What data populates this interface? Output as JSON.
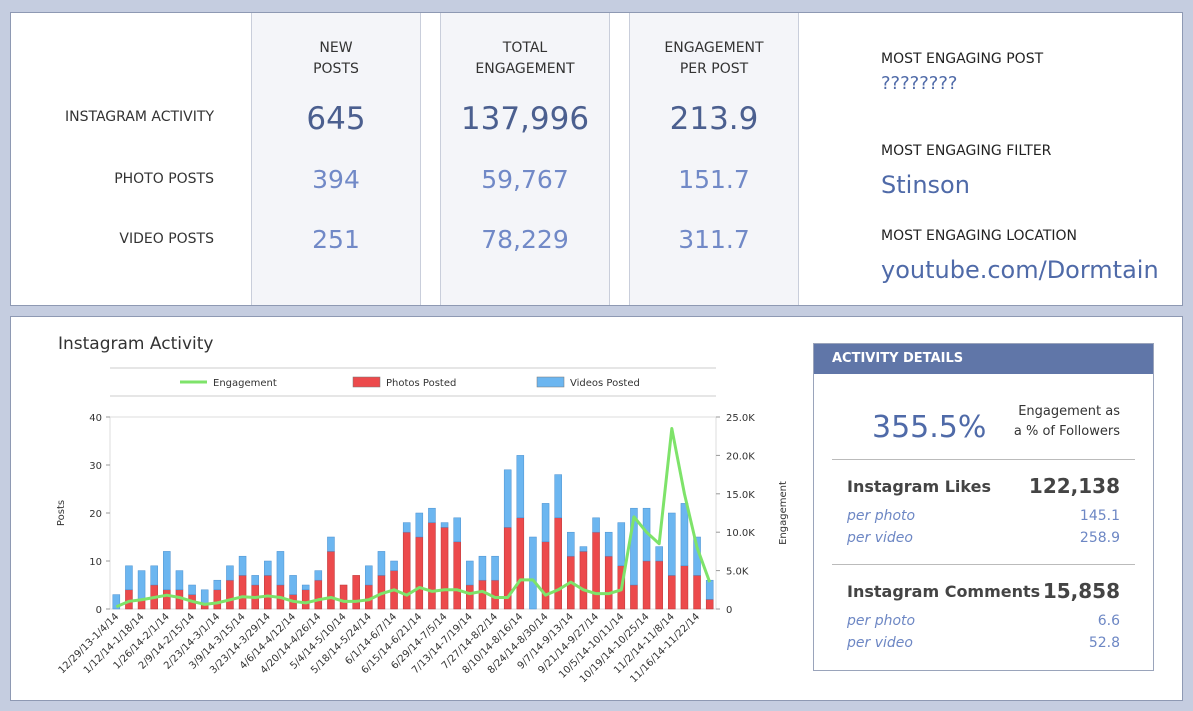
{
  "summary": {
    "headers": [
      [
        "NEW",
        "POSTS"
      ],
      [
        "TOTAL",
        "ENGAGEMENT"
      ],
      [
        "ENGAGEMENT",
        "PER POST"
      ]
    ],
    "rows": [
      {
        "label": "INSTAGRAM ACTIVITY",
        "values": [
          "645",
          "137,996",
          "213.9"
        ]
      },
      {
        "label": "PHOTO POSTS",
        "values": [
          "394",
          "59,767",
          "151.7"
        ]
      },
      {
        "label": "VIDEO POSTS",
        "values": [
          "251",
          "78,229",
          "311.7"
        ]
      }
    ],
    "highlights": [
      {
        "label": "MOST ENGAGING POST",
        "value": "????????"
      },
      {
        "label": "MOST ENGAGING FILTER",
        "value": "Stinson"
      },
      {
        "label": "MOST ENGAGING LOCATION",
        "value": "youtube.com/Dormtain"
      }
    ]
  },
  "details": {
    "title": "ACTIVITY DETAILS",
    "rate": "355.5%",
    "rate_label": [
      "Engagement as",
      "a % of Followers"
    ],
    "sections": [
      {
        "title": "Instagram Likes",
        "total": "122,138",
        "rows": [
          {
            "label": "per photo",
            "value": "145.1"
          },
          {
            "label": "per video",
            "value": "258.9"
          }
        ]
      },
      {
        "title": "Instagram Comments",
        "total": "15,858",
        "rows": [
          {
            "label": "per photo",
            "value": "6.6"
          },
          {
            "label": "per video",
            "value": "52.8"
          }
        ]
      }
    ]
  },
  "chart_data": {
    "type": "bar",
    "title": "Instagram Activity",
    "y_label": "Posts",
    "y2_label": "Engagement",
    "stacked": true,
    "categories": [
      "12/29/13-1/4/14",
      null,
      "1/12/14-1/18/14",
      null,
      "1/26/14-2/1/14",
      null,
      "2/9/14-2/15/14",
      null,
      "2/23/14-3/1/14",
      null,
      "3/9/14-3/15/14",
      null,
      "3/23/14-3/29/14",
      null,
      "4/6/14-4/12/14",
      null,
      "4/20/14-4/26/14",
      null,
      "5/4/14-5/10/14",
      null,
      "5/18/14-5/24/14",
      null,
      "6/1/14-6/7/14",
      null,
      "6/15/14-6/21/14",
      null,
      "6/29/14-7/5/14",
      null,
      "7/13/14-7/19/14",
      null,
      "7/27/14-8/2/14",
      null,
      "8/10/14-8/16/14",
      null,
      "8/24/14-8/30/14",
      null,
      "9/7/14-9/13/14",
      null,
      "9/21/14-9/27/14",
      null,
      "10/5/14-10/11/14",
      null,
      "10/19/14-10/25/14",
      null,
      "11/2/14-11/8/14",
      null,
      "11/16/14-11/22/14",
      null
    ],
    "series": [
      {
        "name": "Engagement",
        "type": "line",
        "axis": "y2",
        "color": "#7ee36a",
        "values": [
          300,
          1000,
          1200,
          1500,
          1800,
          1500,
          1000,
          600,
          800,
          1200,
          1600,
          1500,
          1700,
          1500,
          1000,
          800,
          1200,
          1500,
          1000,
          1000,
          1200,
          2000,
          2500,
          1800,
          2800,
          2300,
          2500,
          2500,
          2000,
          2300,
          1500,
          1500,
          3800,
          3800,
          1800,
          2500,
          3500,
          2500,
          2000,
          2000,
          2500,
          12000,
          10000,
          8500,
          23500,
          15000,
          8000,
          3500
        ]
      },
      {
        "name": "Photos Posted",
        "type": "bar",
        "color": "#ec4a4c",
        "values": [
          0,
          4,
          2,
          5,
          4,
          4,
          3,
          1,
          4,
          6,
          7,
          5,
          7,
          5,
          3,
          4,
          6,
          12,
          5,
          7,
          5,
          7,
          8,
          16,
          15,
          18,
          17,
          14,
          5,
          6,
          6,
          17,
          19,
          0,
          14,
          19,
          11,
          12,
          16,
          11,
          9,
          5,
          10,
          10,
          7,
          9,
          7,
          2
        ]
      },
      {
        "name": "Videos Posted",
        "type": "bar",
        "color": "#6cb6f0",
        "values": [
          3,
          5,
          6,
          4,
          8,
          4,
          2,
          3,
          2,
          3,
          4,
          2,
          3,
          7,
          4,
          1,
          2,
          3,
          0,
          0,
          4,
          5,
          2,
          2,
          5,
          3,
          1,
          5,
          5,
          5,
          5,
          12,
          13,
          15,
          8,
          9,
          5,
          1,
          3,
          5,
          9,
          16,
          11,
          3,
          13,
          13,
          8,
          4
        ]
      }
    ],
    "ylim": [
      0,
      40
    ],
    "yticks": [
      0,
      10,
      20,
      30,
      40
    ],
    "y2lim": [
      0,
      25000
    ],
    "y2ticks": [
      0,
      {
        "value": 5000,
        "label": "5.0K"
      },
      {
        "value": 10000,
        "label": "10.0K"
      },
      {
        "value": 15000,
        "label": "15.0K"
      },
      {
        "value": 20000,
        "label": "20.0K"
      },
      {
        "value": 25000,
        "label": "25.0K"
      }
    ],
    "legend": "top"
  }
}
